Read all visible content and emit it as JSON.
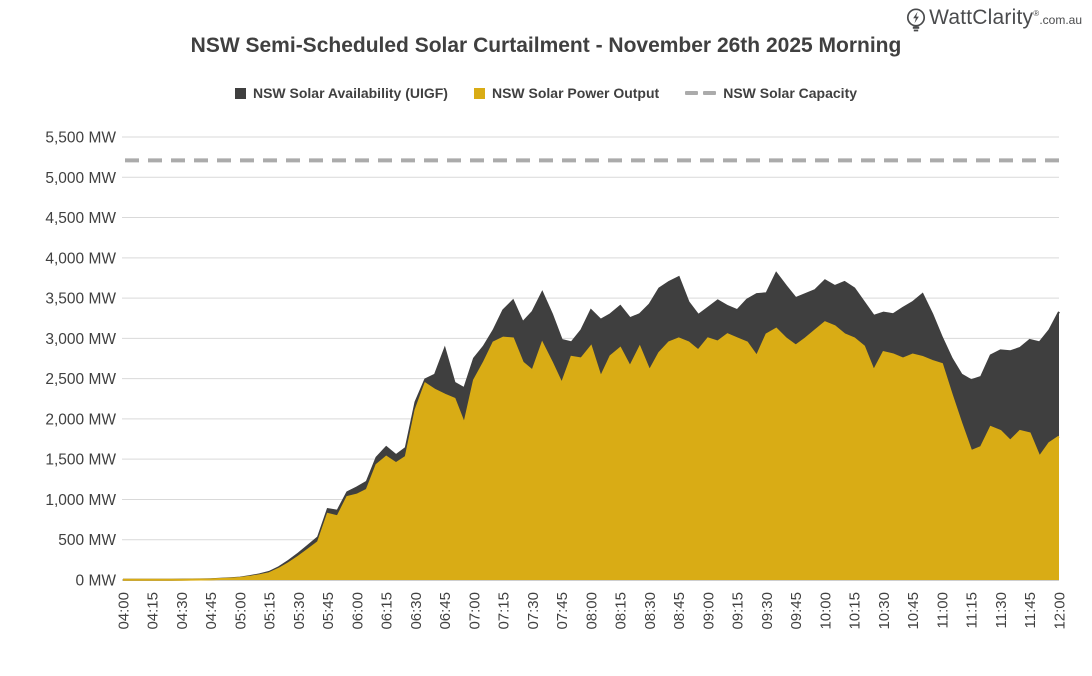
{
  "logo": {
    "brand": "WattClarity",
    "reg_mark": "®",
    "suffix": ".com.au",
    "icon": "lightbulb-bolt-icon",
    "color": "#4a4b4d"
  },
  "chart_data": {
    "type": "area",
    "title": "NSW Semi-Scheduled Solar Curtailment - November 26th 2025 Morning",
    "xlabel": "",
    "ylabel": "",
    "y_unit": "MW",
    "ylim": [
      0,
      5500
    ],
    "y_tick_step": 500,
    "grid": "horizontal",
    "legend_position": "top",
    "x_resolution_minutes": 5,
    "x_tick_labels": [
      "04:00",
      "04:15",
      "04:30",
      "04:45",
      "05:00",
      "05:15",
      "05:30",
      "05:45",
      "06:00",
      "06:15",
      "06:30",
      "06:45",
      "07:00",
      "07:15",
      "07:30",
      "07:45",
      "08:00",
      "08:15",
      "08:30",
      "08:45",
      "09:00",
      "09:15",
      "09:30",
      "09:45",
      "10:00",
      "10:15",
      "10:30",
      "10:45",
      "11:00",
      "11:15",
      "11:30",
      "11:45",
      "12:00"
    ],
    "colors": {
      "availability": "#3f3f3f",
      "output": "#d9ac15",
      "capacity": "#ababab",
      "gridline": "#d9d9d9",
      "zero_axis": "#9e9e9e"
    },
    "series": [
      {
        "name": "NSW Solar Availability (UIGF)",
        "type": "area",
        "marker": "filled-square",
        "color": "#3f3f3f",
        "values": [
          2,
          2,
          2,
          3,
          3,
          4,
          5,
          6,
          8,
          10,
          15,
          22,
          30,
          48,
          70,
          100,
          160,
          240,
          330,
          430,
          530,
          880,
          860,
          1090,
          1150,
          1220,
          1520,
          1650,
          1550,
          1640,
          2210,
          2490,
          2550,
          2870,
          2450,
          2380,
          2750,
          2900,
          3100,
          3350,
          3470,
          3200,
          3330,
          3570,
          3300,
          2980,
          2950,
          3100,
          3350,
          3230,
          3300,
          3400,
          3250,
          3300,
          3420,
          3620,
          3700,
          3760,
          3450,
          3290,
          3380,
          3470,
          3400,
          3350,
          3480,
          3550,
          3560,
          3810,
          3650,
          3500,
          3550,
          3600,
          3720,
          3650,
          3700,
          3620,
          3450,
          3280,
          3320,
          3300,
          3380,
          3450,
          3550,
          3300,
          3010,
          2750,
          2550,
          2480,
          2520,
          2790,
          2850,
          2840,
          2880,
          2980,
          2950,
          3100,
          3330
        ]
      },
      {
        "name": "NSW Solar Power Output",
        "type": "area",
        "marker": "filled-square",
        "color": "#d9ac15",
        "values": [
          2,
          2,
          2,
          2,
          3,
          3,
          4,
          5,
          6,
          8,
          12,
          18,
          25,
          40,
          60,
          85,
          140,
          210,
          290,
          380,
          470,
          820,
          790,
          1030,
          1060,
          1120,
          1430,
          1530,
          1450,
          1530,
          2110,
          2440,
          2360,
          2300,
          2250,
          1940,
          2480,
          2700,
          2950,
          3010,
          3000,
          2700,
          2600,
          2940,
          2700,
          2440,
          2770,
          2750,
          2900,
          2520,
          2780,
          2880,
          2650,
          2890,
          2600,
          2820,
          2950,
          3000,
          2950,
          2850,
          3000,
          2960,
          3050,
          3000,
          2950,
          2780,
          3050,
          3120,
          3000,
          2910,
          3000,
          3100,
          3200,
          3150,
          3050,
          3000,
          2900,
          2600,
          2830,
          2800,
          2750,
          2800,
          2770,
          2720,
          2680,
          2300,
          1940,
          1600,
          1650,
          1900,
          1850,
          1730,
          1850,
          1820,
          1530,
          1700,
          1780
        ]
      },
      {
        "name": "NSW Solar Capacity",
        "type": "dashed-line",
        "marker": "dashes",
        "color": "#ababab",
        "constant_value": 5210
      }
    ]
  }
}
